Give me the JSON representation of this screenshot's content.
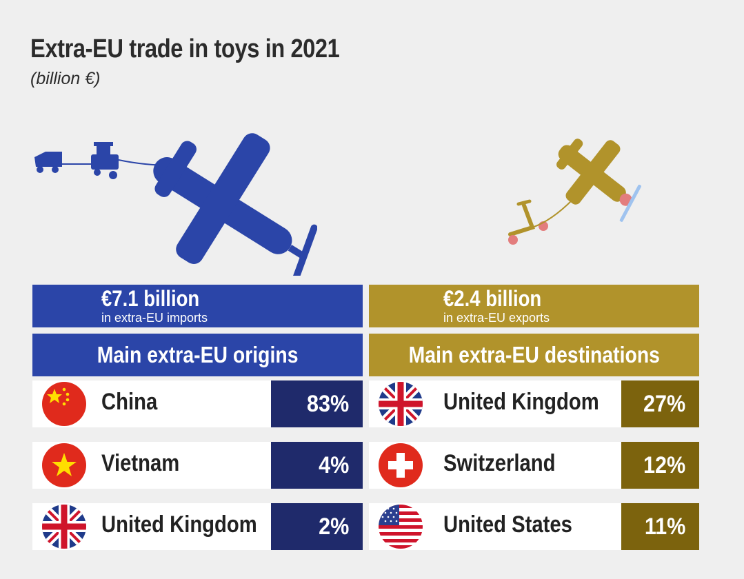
{
  "title": "Extra-EU trade in toys in 2021",
  "subtitle": "(billion €)",
  "colors": {
    "imports_main": "#2b45a8",
    "imports_dark": "#1f2a6b",
    "exports_main": "#b1932b",
    "exports_dark": "#7c630d",
    "background": "#efefef"
  },
  "imports": {
    "total": "€7.1 billion",
    "total_caption": "in extra-EU imports",
    "heading": "Main extra-EU origins",
    "rows": [
      {
        "country": "China",
        "share": "83%",
        "flag": "china-flag-icon"
      },
      {
        "country": "Vietnam",
        "share": "4%",
        "flag": "vietnam-flag-icon"
      },
      {
        "country": "United Kingdom",
        "share": "2%",
        "flag": "uk-flag-icon"
      }
    ]
  },
  "exports": {
    "total": "€2.4 billion",
    "total_caption": "in extra-EU exports",
    "heading": "Main extra-EU destinations",
    "rows": [
      {
        "country": "United Kingdom",
        "share": "27%",
        "flag": "uk-flag-icon"
      },
      {
        "country": "Switzerland",
        "share": "12%",
        "flag": "switzerland-flag-icon"
      },
      {
        "country": "United States",
        "share": "11%",
        "flag": "usa-flag-icon"
      }
    ]
  }
}
